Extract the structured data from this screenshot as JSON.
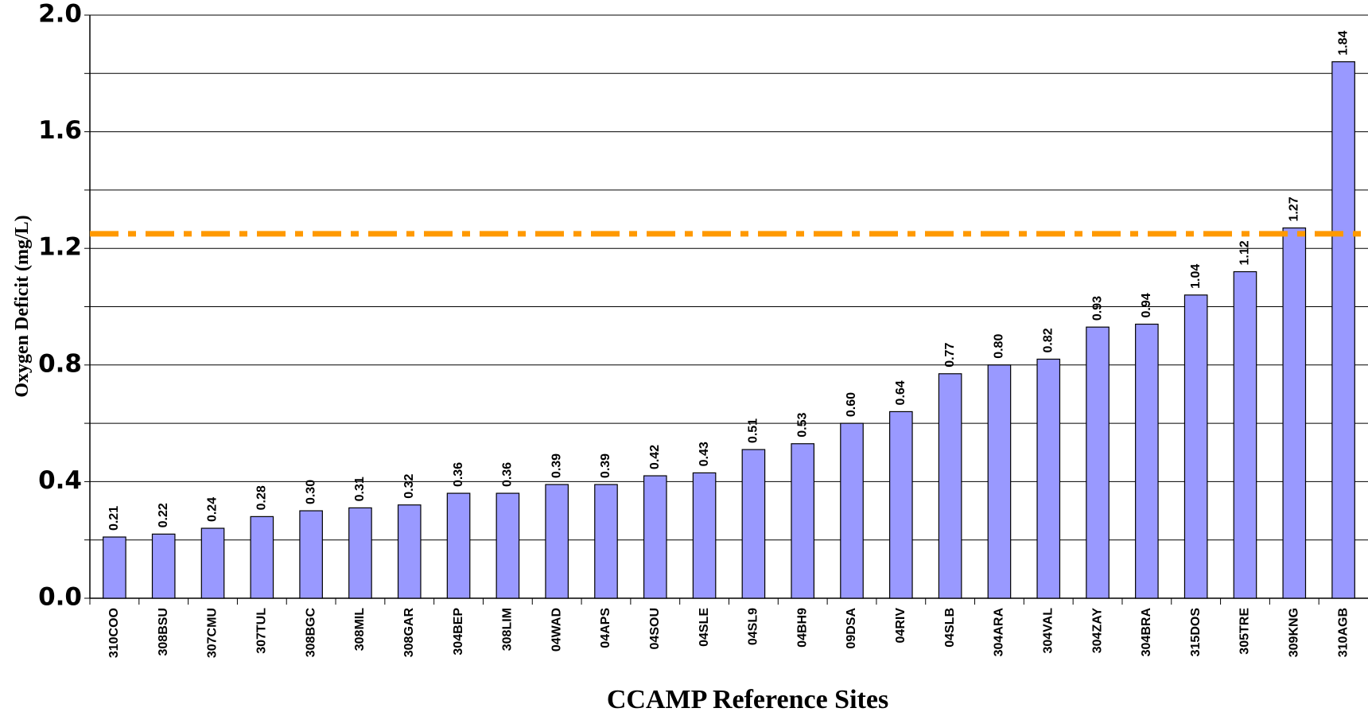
{
  "chart_data": {
    "type": "bar",
    "y_label": "Oxygen Deficit (mg/L)",
    "x_label": "CCAMP Reference Sites",
    "categories": [
      "310COO",
      "308BSU",
      "307CMU",
      "307TUL",
      "308BGC",
      "308MIL",
      "308GAR",
      "304BEP",
      "308LIM",
      "04WAD",
      "04APS",
      "04SOU",
      "04SLE",
      "04SL9",
      "04BH9",
      "09DSA",
      "04RIV",
      "04SLB",
      "304ARA",
      "304VAL",
      "304ZAY",
      "304BRA",
      "315DOS",
      "305TRE",
      "309KNG",
      "310AGB"
    ],
    "values": [
      0.21,
      0.22,
      0.24,
      0.28,
      0.3,
      0.31,
      0.32,
      0.36,
      0.36,
      0.39,
      0.39,
      0.42,
      0.43,
      0.51,
      0.53,
      0.6,
      0.64,
      0.77,
      0.8,
      0.82,
      0.93,
      0.94,
      1.04,
      1.12,
      1.27,
      1.84
    ],
    "value_labels": [
      "0.21",
      "0.22",
      "0.24",
      "0.28",
      "0.30",
      "0.31",
      "0.32",
      "0.36",
      "0.36",
      "0.39",
      "0.39",
      "0.42",
      "0.43",
      "0.51",
      "0.53",
      "0.60",
      "0.64",
      "0.77",
      "0.80",
      "0.82",
      "0.93",
      "0.94",
      "1.04",
      "1.12",
      "1.27",
      "1.84"
    ],
    "color": "#9999ff",
    "ylim": [
      0,
      2
    ],
    "yticks": [
      {
        "value": 0,
        "label": "0.0"
      },
      0.4,
      0.8,
      1.2,
      1.6,
      {
        "value": 2,
        "label": "2.0"
      }
    ],
    "minor_yticks": [
      0.2,
      0.6,
      1,
      1.4,
      1.8
    ],
    "grid": true,
    "reference_line": {
      "value": 1.25,
      "color": "#ff9900"
    }
  }
}
